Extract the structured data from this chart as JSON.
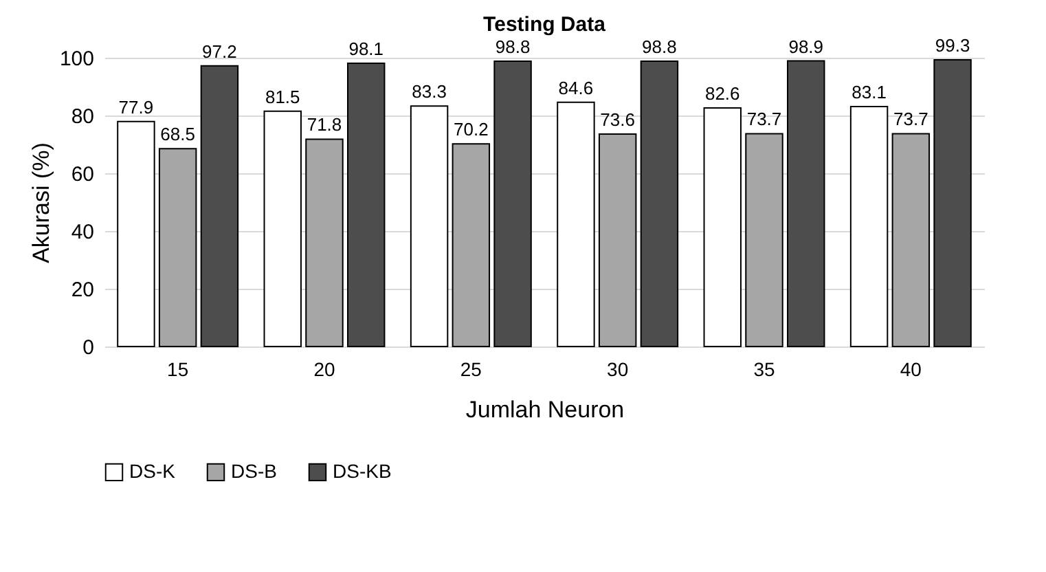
{
  "chart_data": {
    "type": "bar",
    "title": "Testing Data",
    "xlabel": "Jumlah Neuron",
    "ylabel": "Akurasi (%)",
    "categories": [
      "15",
      "20",
      "25",
      "30",
      "35",
      "40"
    ],
    "series": [
      {
        "name": "DS-K",
        "color": "#ffffff",
        "values": [
          77.9,
          81.5,
          83.3,
          84.6,
          82.6,
          83.1
        ]
      },
      {
        "name": "DS-B",
        "color": "#a6a6a6",
        "values": [
          68.5,
          71.8,
          70.2,
          73.6,
          73.7,
          73.7
        ]
      },
      {
        "name": "DS-KB",
        "color": "#4d4d4d",
        "values": [
          97.2,
          98.1,
          98.8,
          98.8,
          98.9,
          99.3
        ]
      }
    ],
    "ylim": [
      0,
      100
    ],
    "yticks": [
      0,
      20,
      40,
      60,
      80,
      100
    ],
    "grid": "y",
    "legend": "bottom",
    "data_labels": true
  }
}
